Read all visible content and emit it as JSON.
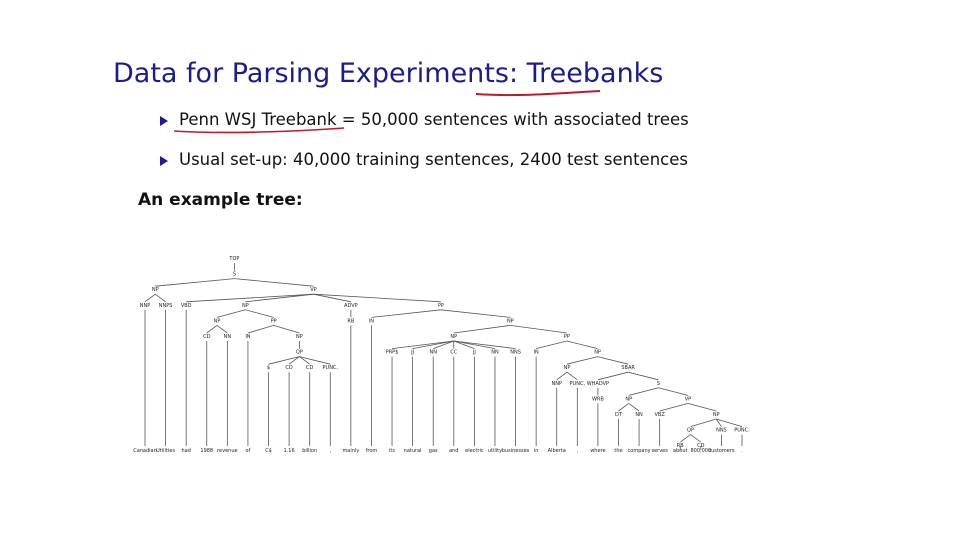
{
  "slide": {
    "title_pre": "Data for Parsing Experiments: ",
    "title_hl": "Treebanks",
    "bullets": [
      {
        "a": "Penn WSJ Treebank",
        "b": " = 50,000 sentences with associated trees"
      },
      {
        "a": "Usual set-up: 40,000 training sentences, 2400 test sentences",
        "b": ""
      }
    ],
    "subhead": "An example tree:"
  },
  "colors": {
    "title": "#1c1c8c",
    "annotation": "#c0182a",
    "tree_lines": "#555555"
  },
  "tree": {
    "leaves": [
      "Canadian",
      "Utilities",
      "had",
      "1988",
      "revenue",
      "of",
      "C$",
      "1.16",
      "billion",
      ",",
      "mainly",
      "from",
      "its",
      "natural",
      "gas",
      "and",
      "electric",
      "utility",
      "businesses",
      "in",
      "Alberta",
      ",",
      "where",
      "the",
      "company",
      "serves",
      "about",
      "800,000",
      "customers",
      "."
    ],
    "root": [
      "TOP",
      [
        [
          "S",
          [
            [
              "NP",
              [
                [
                  "NNP",
                  0
                ],
                [
                  "NNPS",
                  1
                ]
              ]
            ],
            [
              "VP",
              [
                [
                  "VBD",
                  2
                ],
                [
                  "NP",
                  [
                    [
                      "NP",
                      [
                        [
                          "CD",
                          3
                        ],
                        [
                          "NN",
                          4
                        ]
                      ]
                    ],
                    [
                      "PP",
                      [
                        [
                          "IN",
                          5
                        ],
                        [
                          "NP",
                          [
                            [
                              "QP",
                              [
                                [
                                  "$",
                                  6
                                ],
                                [
                                  "CD",
                                  7
                                ],
                                [
                                  "CD",
                                  8
                                ],
                                [
                                  "PUNC,",
                                  9
                                ]
                              ]
                            ]
                          ]
                        ]
                      ]
                    ]
                  ]
                ],
                [
                  "ADVP",
                  [
                    [
                      "RB",
                      10
                    ]
                  ]
                ],
                [
                  "PP",
                  [
                    [
                      "IN",
                      11
                    ],
                    [
                      "NP",
                      [
                        [
                          "NP",
                          [
                            [
                              "PRP$",
                              12
                            ],
                            [
                              "JJ",
                              13
                            ],
                            [
                              "NN",
                              14
                            ],
                            [
                              "CC",
                              15
                            ],
                            [
                              "JJ",
                              16
                            ],
                            [
                              "NN",
                              17
                            ],
                            [
                              "NNS",
                              18
                            ]
                          ]
                        ],
                        [
                          "PP",
                          [
                            [
                              "IN",
                              19
                            ],
                            [
                              "NP",
                              [
                                [
                                  "NP",
                                  [
                                    [
                                      "NNP",
                                      20
                                    ],
                                    [
                                      "PUNC,",
                                      21
                                    ]
                                  ]
                                ],
                                [
                                  "SBAR",
                                  [
                                    [
                                      "WHADVP",
                                      [
                                        [
                                          "WRB",
                                          22
                                        ]
                                      ]
                                    ],
                                    [
                                      "S",
                                      [
                                        [
                                          "NP",
                                          [
                                            [
                                              "DT",
                                              23
                                            ],
                                            [
                                              "NN",
                                              24
                                            ]
                                          ]
                                        ],
                                        [
                                          "VP",
                                          [
                                            [
                                              "VBZ",
                                              25
                                            ],
                                            [
                                              "NP",
                                              [
                                                [
                                                  "QP",
                                                  [
                                                    [
                                                      "RB",
                                                      26
                                                    ],
                                                    [
                                                      "CD",
                                                      27
                                                    ]
                                                  ]
                                                ],
                                                [
                                                  "NNS",
                                                  28
                                                ],
                                                [
                                                  "PUNC.",
                                                  29
                                                ]
                                              ]
                                            ]
                                          ]
                                        ]
                                      ]
                                    ]
                                  ]
                                ]
                              ]
                            ]
                          ]
                        ]
                      ]
                    ]
                  ]
                ]
              ]
            ]
          ]
        ]
      ]
    ]
  }
}
